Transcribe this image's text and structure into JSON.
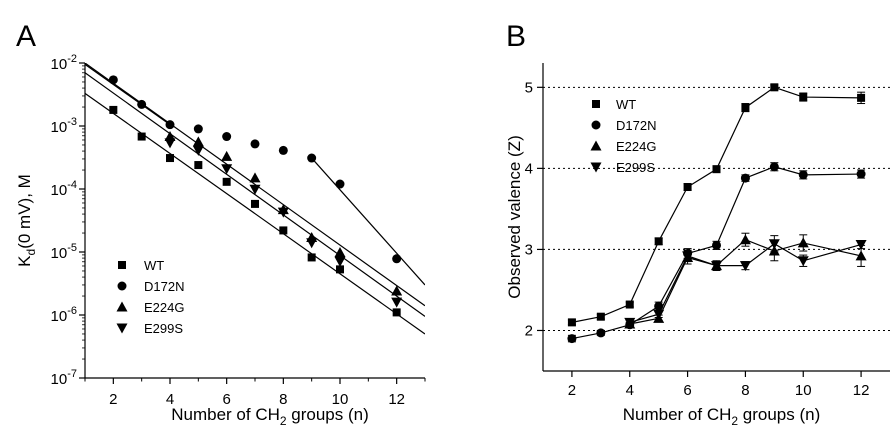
{
  "chart_data": [
    {
      "panel_label": "A",
      "type": "scatter",
      "xlabel": "Number of CH",
      "xlabel_subscript": "2",
      "xlabel_suffix": " groups (n)",
      "ylabel": "K",
      "ylabel_subscript": "d",
      "ylabel_suffix": "(0 mV), M",
      "xlim": [
        1,
        13
      ],
      "ylim": [
        1e-07,
        0.01
      ],
      "yscale": "log",
      "x_ticks": [
        2,
        4,
        6,
        8,
        10,
        12
      ],
      "y_ticks": [
        {
          "value": 0.01,
          "base": "10",
          "exp": "-2"
        },
        {
          "value": 0.001,
          "base": "10",
          "exp": "-3"
        },
        {
          "value": 0.0001,
          "base": "10",
          "exp": "-4"
        },
        {
          "value": 1e-05,
          "base": "10",
          "exp": "-5"
        },
        {
          "value": 1e-06,
          "base": "10",
          "exp": "-6"
        },
        {
          "value": 1e-07,
          "base": "10",
          "exp": "-7"
        }
      ],
      "legend_position": "lower-left",
      "series": [
        {
          "name": "WT",
          "marker": "square",
          "x": [
            2,
            3,
            4,
            5,
            6,
            7,
            8,
            9,
            10,
            12
          ],
          "y": [
            0.0018,
            0.00068,
            0.00031,
            0.00024,
            0.00013,
            5.8e-05,
            2.2e-05,
            8.2e-06,
            5.3e-06,
            1.1e-06
          ]
        },
        {
          "name": "D172N",
          "marker": "circle",
          "x": [
            2,
            3,
            4,
            5,
            6,
            7,
            8,
            9,
            10,
            12
          ],
          "y": [
            0.0054,
            0.0022,
            0.00105,
            0.0009,
            0.00068,
            0.00052,
            0.00041,
            0.00031,
            0.00012,
            7.8e-06
          ]
        },
        {
          "name": "E224G",
          "marker": "triangle-up",
          "x": [
            4,
            5,
            6,
            7,
            8,
            9,
            10,
            12
          ],
          "y": [
            0.00068,
            0.00056,
            0.00033,
            0.00015,
            4.7e-05,
            1.7e-05,
            9.8e-06,
            2.4e-06
          ]
        },
        {
          "name": "E299S",
          "marker": "triangle-down",
          "x": [
            4,
            5,
            6,
            7,
            8,
            9,
            10,
            12
          ],
          "y": [
            0.00054,
            0.00041,
            0.00021,
            9.9e-05,
            4.3e-05,
            1.4e-05,
            7.1e-06,
            1.6e-06
          ]
        }
      ],
      "fit_lines": [
        {
          "x": [
            1,
            13
          ],
          "y": [
            0.0033,
            5e-07
          ]
        },
        {
          "x": [
            1,
            13
          ],
          "y": [
            0.007,
            9.5e-07
          ]
        },
        {
          "x": [
            1,
            13
          ],
          "y": [
            0.01,
            1.4e-06
          ]
        },
        {
          "x": [
            1,
            4
          ],
          "y": [
            0.0095,
            0.00105
          ]
        },
        {
          "x": [
            9,
            13
          ],
          "y": [
            0.00031,
            3e-06
          ]
        }
      ]
    },
    {
      "panel_label": "B",
      "type": "line",
      "xlabel": "Number of CH",
      "xlabel_subscript": "2",
      "xlabel_suffix": " groups (n)",
      "ylabel": "Observed valence (Z)",
      "xlim": [
        1,
        13
      ],
      "ylim": [
        1.5,
        5.3
      ],
      "x_ticks": [
        2,
        4,
        6,
        8,
        10,
        12
      ],
      "y_ticks": [
        2,
        3,
        4,
        5
      ],
      "horizontal_gridlines": [
        2,
        3,
        4,
        5
      ],
      "gridline_style": "dotted",
      "legend_position": "top-left",
      "series": [
        {
          "name": "WT",
          "marker": "square",
          "x": [
            2,
            3,
            4,
            5,
            6,
            7,
            8,
            9,
            10,
            12
          ],
          "y": [
            2.1,
            2.17,
            2.32,
            3.1,
            3.77,
            3.99,
            4.75,
            5.0,
            4.88,
            4.87
          ],
          "err": [
            0.03,
            0.03,
            0.03,
            0.04,
            0.04,
            0.04,
            0.05,
            0.03,
            0.05,
            0.07
          ]
        },
        {
          "name": "D172N",
          "marker": "circle",
          "x": [
            2,
            3,
            4,
            5,
            6,
            7,
            8,
            9,
            10,
            12
          ],
          "y": [
            1.9,
            1.97,
            2.07,
            2.3,
            2.95,
            3.05,
            3.88,
            4.02,
            3.92,
            3.93
          ],
          "err": [
            0.04,
            0.03,
            0.03,
            0.05,
            0.06,
            0.05,
            0.04,
            0.05,
            0.05,
            0.05
          ]
        },
        {
          "name": "E224G",
          "marker": "triangle-up",
          "x": [
            4,
            5,
            6,
            7,
            8,
            9,
            10,
            12
          ],
          "y": [
            2.08,
            2.15,
            2.9,
            2.8,
            3.12,
            2.98,
            3.08,
            2.92
          ],
          "err": [
            0.04,
            0.04,
            0.08,
            0.06,
            0.08,
            0.12,
            0.1,
            0.13
          ]
        },
        {
          "name": "E299S",
          "marker": "triangle-down",
          "x": [
            4,
            5,
            6,
            7,
            8,
            9,
            10,
            12
          ],
          "y": [
            2.1,
            2.2,
            2.92,
            2.8,
            2.8,
            3.07,
            2.86,
            3.06
          ],
          "err": [
            0.04,
            0.04,
            0.07,
            0.05,
            0.05,
            0.1,
            0.07,
            0.05
          ]
        }
      ]
    }
  ]
}
